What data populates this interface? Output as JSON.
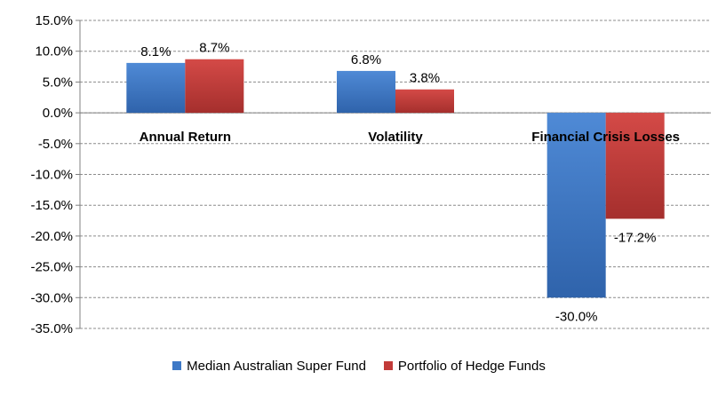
{
  "chart_data": {
    "type": "bar",
    "categories": [
      "Annual Return",
      "Volatility",
      "Financial Crisis Losses"
    ],
    "series": [
      {
        "name": "Median Australian Super Fund",
        "values": [
          8.1,
          6.8,
          -30.0
        ],
        "labels": [
          "8.1%",
          "6.8%",
          "-30.0%"
        ],
        "color": "#3d78c6"
      },
      {
        "name": "Portfolio of Hedge Funds",
        "values": [
          8.7,
          3.8,
          -17.2
        ],
        "labels": [
          "8.7%",
          "3.8%",
          "-17.2%"
        ],
        "color": "#c23b39"
      }
    ],
    "ylim": [
      -35,
      15
    ],
    "yticks": [
      15,
      10,
      5,
      0,
      -5,
      -10,
      -15,
      -20,
      -25,
      -30,
      -35
    ],
    "ytick_labels": [
      "15.0%",
      "10.0%",
      "5.0%",
      "0.0%",
      "-5.0%",
      "-10.0%",
      "-15.0%",
      "-20.0%",
      "-25.0%",
      "-30.0%",
      "-35.0%"
    ],
    "grid": true,
    "legend_position": "bottom"
  }
}
